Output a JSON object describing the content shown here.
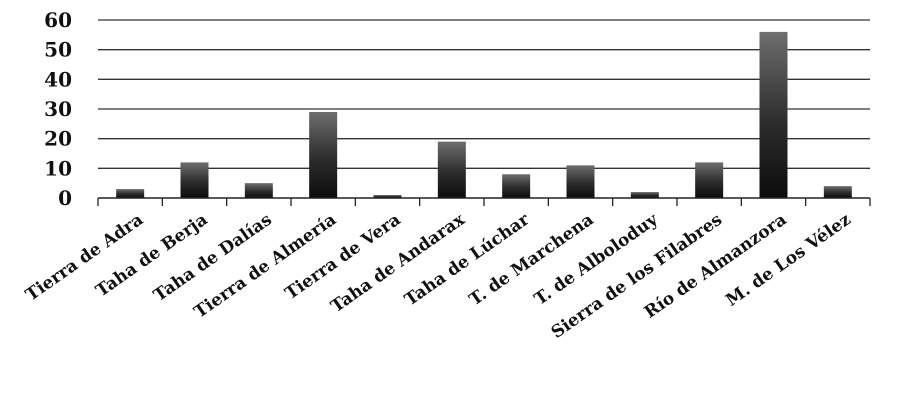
{
  "chart_data": {
    "type": "bar",
    "title": "",
    "xlabel": "",
    "ylabel": "",
    "ylim": [
      0,
      60
    ],
    "yticks": [
      0,
      10,
      20,
      30,
      40,
      50,
      60
    ],
    "grid": true,
    "legend": "none",
    "categories": [
      "Tierra de Adra",
      "Taha de Berja",
      "Taha de Dalías",
      "Tierra de Almería",
      "Tierra de Vera",
      "Taha de Andarax",
      "Taha de Lúchar",
      "T. de Marchena",
      "T. de Alboloduy",
      "Sierra de los Filabres",
      "Río de Almanzora",
      "M. de Los Vélez"
    ],
    "values": [
      3,
      12,
      5,
      29,
      1,
      19,
      8,
      11,
      2,
      12,
      56,
      4
    ],
    "bar_color": "#2a2a2a"
  }
}
